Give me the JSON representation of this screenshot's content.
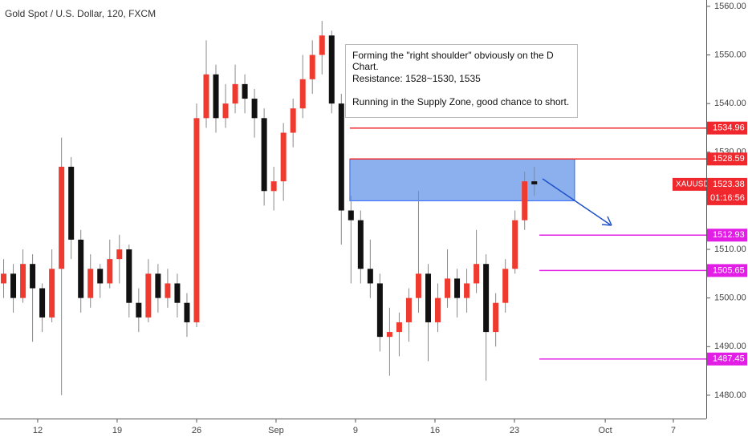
{
  "chart_data": {
    "type": "candlestick",
    "title": "Gold Spot / U.S. Dollar, 120, FXCM",
    "up_color": "#ef3a2f",
    "down_color": "#111111",
    "xlim": [
      8.68,
      70.9
    ],
    "xticks": [
      12,
      19,
      26,
      {
        "value": 33,
        "label": "Sep"
      },
      {
        "value": 40,
        "label": "9"
      },
      {
        "value": 47,
        "label": "16"
      },
      {
        "value": 54,
        "label": "23"
      },
      {
        "value": 62,
        "label": "Oct"
      },
      {
        "value": 68,
        "label": "7"
      }
    ],
    "ylim": [
      1475.2,
      1561.3
    ],
    "yticks": [
      {
        "value": 1480,
        "label": "1480.00"
      },
      {
        "value": 1490,
        "label": "1490.00"
      },
      {
        "value": 1500,
        "label": "1500.00"
      },
      {
        "value": 1510,
        "label": "1510.00"
      },
      {
        "value": 1520,
        "label": "1520.00"
      },
      {
        "value": 1530,
        "label": "1530.00"
      },
      {
        "value": 1540,
        "label": "1540.00"
      },
      {
        "value": 1550,
        "label": "1550.00"
      },
      {
        "value": 1560,
        "label": "1560.00"
      }
    ],
    "x": [
      9.0,
      9.85,
      10.7,
      11.55,
      12.4,
      13.25,
      14.1,
      14.95,
      15.8,
      16.65,
      17.5,
      18.35,
      19.2,
      20.05,
      20.9,
      21.75,
      22.6,
      23.45,
      24.3,
      25.15,
      26.0,
      26.85,
      27.7,
      28.55,
      29.4,
      30.25,
      31.1,
      31.95,
      32.8,
      33.65,
      34.5,
      35.35,
      36.2,
      37.05,
      37.9,
      38.75,
      39.6,
      40.45,
      41.3,
      42.15,
      43.0,
      43.85,
      44.7,
      45.55,
      46.4,
      47.25,
      48.1,
      48.95,
      49.8,
      50.65,
      51.5,
      52.35,
      53.2,
      54.05,
      54.9,
      55.75
    ],
    "open": [
      1503,
      1505,
      1500,
      1507,
      1502,
      1496,
      1506,
      1527,
      1512,
      1500,
      1506,
      1503,
      1508,
      1510,
      1499,
      1496,
      1505,
      1500,
      1503,
      1499,
      1495,
      1537,
      1546,
      1537,
      1540,
      1544,
      1541,
      1537,
      1522,
      1524,
      1534,
      1539,
      1545,
      1550,
      1554,
      1540,
      1518,
      1516,
      1506,
      1503,
      1492,
      1493,
      1495,
      1500,
      1505,
      1495,
      1500,
      1504,
      1500,
      1503,
      1507,
      1493,
      1499,
      1506,
      1516,
      1524
    ],
    "high": [
      1508,
      1507,
      1510,
      1509,
      1503,
      1510,
      1533,
      1529,
      1514,
      1509,
      1507,
      1512,
      1513,
      1511,
      1502,
      1508,
      1507,
      1506,
      1505,
      1501,
      1540,
      1553,
      1548,
      1544,
      1548,
      1546,
      1543,
      1539,
      1527,
      1536,
      1541,
      1550,
      1553,
      1557,
      1555,
      1542,
      1521,
      1518,
      1512,
      1505,
      1498,
      1497,
      1502,
      1522,
      1507,
      1503,
      1510,
      1506,
      1506,
      1514,
      1509,
      1501,
      1508,
      1518,
      1526,
      1527
    ],
    "low": [
      1500,
      1497,
      1499,
      1491,
      1493,
      1495,
      1480,
      1508,
      1497,
      1498,
      1500,
      1502,
      1503,
      1496,
      1493,
      1495,
      1497,
      1498,
      1496,
      1492,
      1494,
      1535,
      1534,
      1535,
      1538,
      1538,
      1533,
      1519,
      1518,
      1520,
      1531,
      1537,
      1542,
      1546,
      1538,
      1511,
      1503,
      1503,
      1500,
      1489,
      1484,
      1488,
      1491,
      1497,
      1487,
      1493,
      1498,
      1496,
      1497,
      1501,
      1483,
      1490,
      1497,
      1505,
      1514,
      1521
    ],
    "close": [
      1505,
      1500,
      1507,
      1502,
      1496,
      1506,
      1527,
      1512,
      1500,
      1506,
      1503,
      1508,
      1510,
      1499,
      1496,
      1505,
      1500,
      1503,
      1499,
      1495,
      1537,
      1546,
      1537,
      1540,
      1544,
      1541,
      1537,
      1522,
      1524,
      1534,
      1539,
      1545,
      1550,
      1554,
      1540,
      1518,
      1516,
      1506,
      1503,
      1492,
      1493,
      1495,
      1500,
      1505,
      1495,
      1500,
      1504,
      1500,
      1503,
      1507,
      1493,
      1499,
      1506,
      1516,
      1524,
      1523.38
    ],
    "levels": [
      {
        "value": 1534.96,
        "color": "#f0282d",
        "from": 39.5
      },
      {
        "value": 1528.59,
        "color": "#f0282d",
        "from": 39.5
      },
      {
        "value": 1512.93,
        "color": "#e21ee6",
        "from": 56.2
      },
      {
        "value": 1505.65,
        "color": "#e21ee6",
        "from": 56.2
      },
      {
        "value": 1487.45,
        "color": "#e21ee6",
        "from": 56.2
      }
    ],
    "zone": {
      "x": [
        39.5,
        59.3
      ],
      "y": [
        1520.0,
        1528.59
      ],
      "color": "#5b8fe6"
    },
    "last_price": {
      "symbol": "XAUUSD",
      "value": 1523.38,
      "countdown": "01:16:56",
      "color": "#f0282d"
    },
    "annotations": [
      "Forming the \"right shoulder\" obviously on the D Chart.",
      "Resistance: 1528~1530, 1535",
      "Running in the Supply Zone, good chance to short."
    ]
  }
}
